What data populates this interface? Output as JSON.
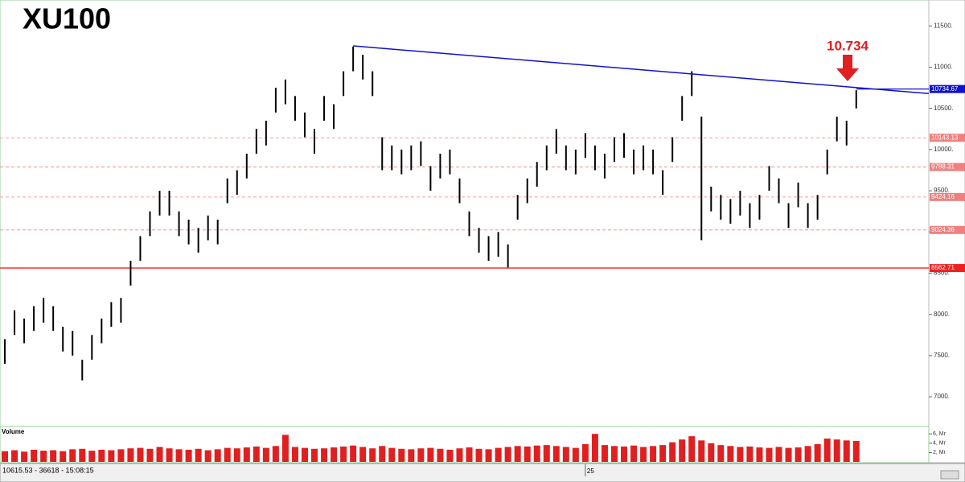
{
  "chart_data": {
    "type": "ohlc",
    "title": "XU100",
    "annotation": "10.734",
    "status": "10615.53 - 36618 - 15:08:15",
    "color": "#000000",
    "grid": false,
    "high": [
      7700,
      8050,
      7950,
      8100,
      8200,
      8100,
      7850,
      7800,
      7450,
      7750,
      7950,
      8150,
      8200,
      8650,
      8950,
      9250,
      9500,
      9500,
      9250,
      9150,
      9050,
      9200,
      9150,
      9650,
      9750,
      9950,
      10250,
      10350,
      10750,
      10850,
      10650,
      10450,
      10250,
      10650,
      10550,
      10950,
      11250,
      11150,
      10950,
      10150,
      10050,
      10000,
      10050,
      10100,
      9800,
      9950,
      10000,
      9650,
      9250,
      9050,
      8950,
      9000,
      8850,
      9450,
      9650,
      9850,
      10050,
      10250,
      10050,
      10000,
      10200,
      10050,
      9950,
      10150,
      10200,
      10000,
      10050,
      10000,
      9750,
      10150,
      10650,
      10950,
      10400,
      9550,
      9450,
      9400,
      9500,
      9350,
      9450,
      9800,
      9650,
      9350,
      9600,
      9350,
      9450,
      10000,
      10400,
      10350,
      10720
    ],
    "low": [
      7400,
      7750,
      7650,
      7800,
      7900,
      7800,
      7550,
      7500,
      7200,
      7450,
      7650,
      7850,
      7900,
      8350,
      8650,
      8950,
      9200,
      9200,
      8950,
      8850,
      8750,
      8900,
      8850,
      9350,
      9450,
      9650,
      9950,
      10050,
      10450,
      10550,
      10350,
      10150,
      9950,
      10350,
      10250,
      10650,
      10950,
      10850,
      10650,
      9750,
      9750,
      9700,
      9750,
      9800,
      9500,
      9650,
      9700,
      9350,
      8950,
      8750,
      8650,
      8700,
      8570,
      9150,
      9350,
      9550,
      9750,
      9950,
      9750,
      9700,
      9900,
      9750,
      9650,
      9850,
      9900,
      9700,
      9750,
      9700,
      9450,
      9850,
      10350,
      10650,
      8900,
      9250,
      9150,
      9100,
      9200,
      9050,
      9150,
      9500,
      9350,
      9050,
      9300,
      9050,
      9150,
      9700,
      10100,
      10050,
      10500
    ],
    "xlim": [
      -0.5,
      95.5
    ],
    "xticks": [
      {
        "value": 60,
        "label": "25"
      }
    ],
    "ylim": [
      6640,
      11815
    ],
    "yticks": [
      {
        "value": 11500,
        "label": "11500."
      },
      {
        "value": 11000,
        "label": "11000."
      },
      {
        "value": 10500,
        "label": "10500."
      },
      {
        "value": 10000,
        "label": "10000."
      },
      {
        "value": 9500,
        "label": "9500."
      },
      {
        "value": 9000,
        "label": "9000."
      },
      {
        "value": 8500,
        "label": "8500."
      },
      {
        "value": 8000,
        "label": "8000."
      },
      {
        "value": 7500,
        "label": "7500."
      },
      {
        "value": 7000,
        "label": "7000."
      }
    ],
    "trendline": {
      "color": "#1010d0",
      "x": [
        36,
        95.5
      ],
      "y": [
        11258,
        10680
      ]
    },
    "levels": [
      {
        "value": 10734.67,
        "color": "#1010d0",
        "style": "solid",
        "from": 88
      },
      {
        "value": 10143.13,
        "color": "#f08080",
        "style": "dashed"
      },
      {
        "value": 9788.31,
        "color": "#f08080",
        "style": "dashed"
      },
      {
        "value": 9424.16,
        "color": "#f08080",
        "style": "dashed"
      },
      {
        "value": 9024.36,
        "color": "#f08080",
        "style": "dashed"
      },
      {
        "value": 8562.71,
        "color": "#ee2020",
        "style": "solid"
      }
    ],
    "volume": {
      "name": "Volume",
      "color": "#e02020",
      "ylim": [
        0,
        6.9
      ],
      "yticks": [
        {
          "value": 6,
          "label": "6, Mr"
        },
        {
          "value": 4,
          "label": "4, Mr"
        },
        {
          "value": 2,
          "label": "2, Mr"
        }
      ],
      "values": [
        2.3,
        2.5,
        2.2,
        2.6,
        2.4,
        2.5,
        2.3,
        2.7,
        2.8,
        2.4,
        2.6,
        2.5,
        2.7,
        2.9,
        3.0,
        2.8,
        3.2,
        2.9,
        2.7,
        2.6,
        2.8,
        2.5,
        2.7,
        3.0,
        2.9,
        3.1,
        3.3,
        3.0,
        3.4,
        5.8,
        3.2,
        3.0,
        2.8,
        2.9,
        3.1,
        3.3,
        3.5,
        3.2,
        2.9,
        3.4,
        3.0,
        2.8,
        2.7,
        2.9,
        3.0,
        2.8,
        2.6,
        2.9,
        3.1,
        2.8,
        2.7,
        3.0,
        3.2,
        3.4,
        3.3,
        3.5,
        3.6,
        3.4,
        3.2,
        3.0,
        3.8,
        6.0,
        3.6,
        3.4,
        3.3,
        3.5,
        3.2,
        3.4,
        3.6,
        4.2,
        4.8,
        5.5,
        4.6,
        4.0,
        3.6,
        3.4,
        3.2,
        3.3,
        3.1,
        3.0,
        3.2,
        3.0,
        3.1,
        3.4,
        3.8,
        5.0,
        4.8,
        4.6,
        4.5
      ]
    }
  }
}
